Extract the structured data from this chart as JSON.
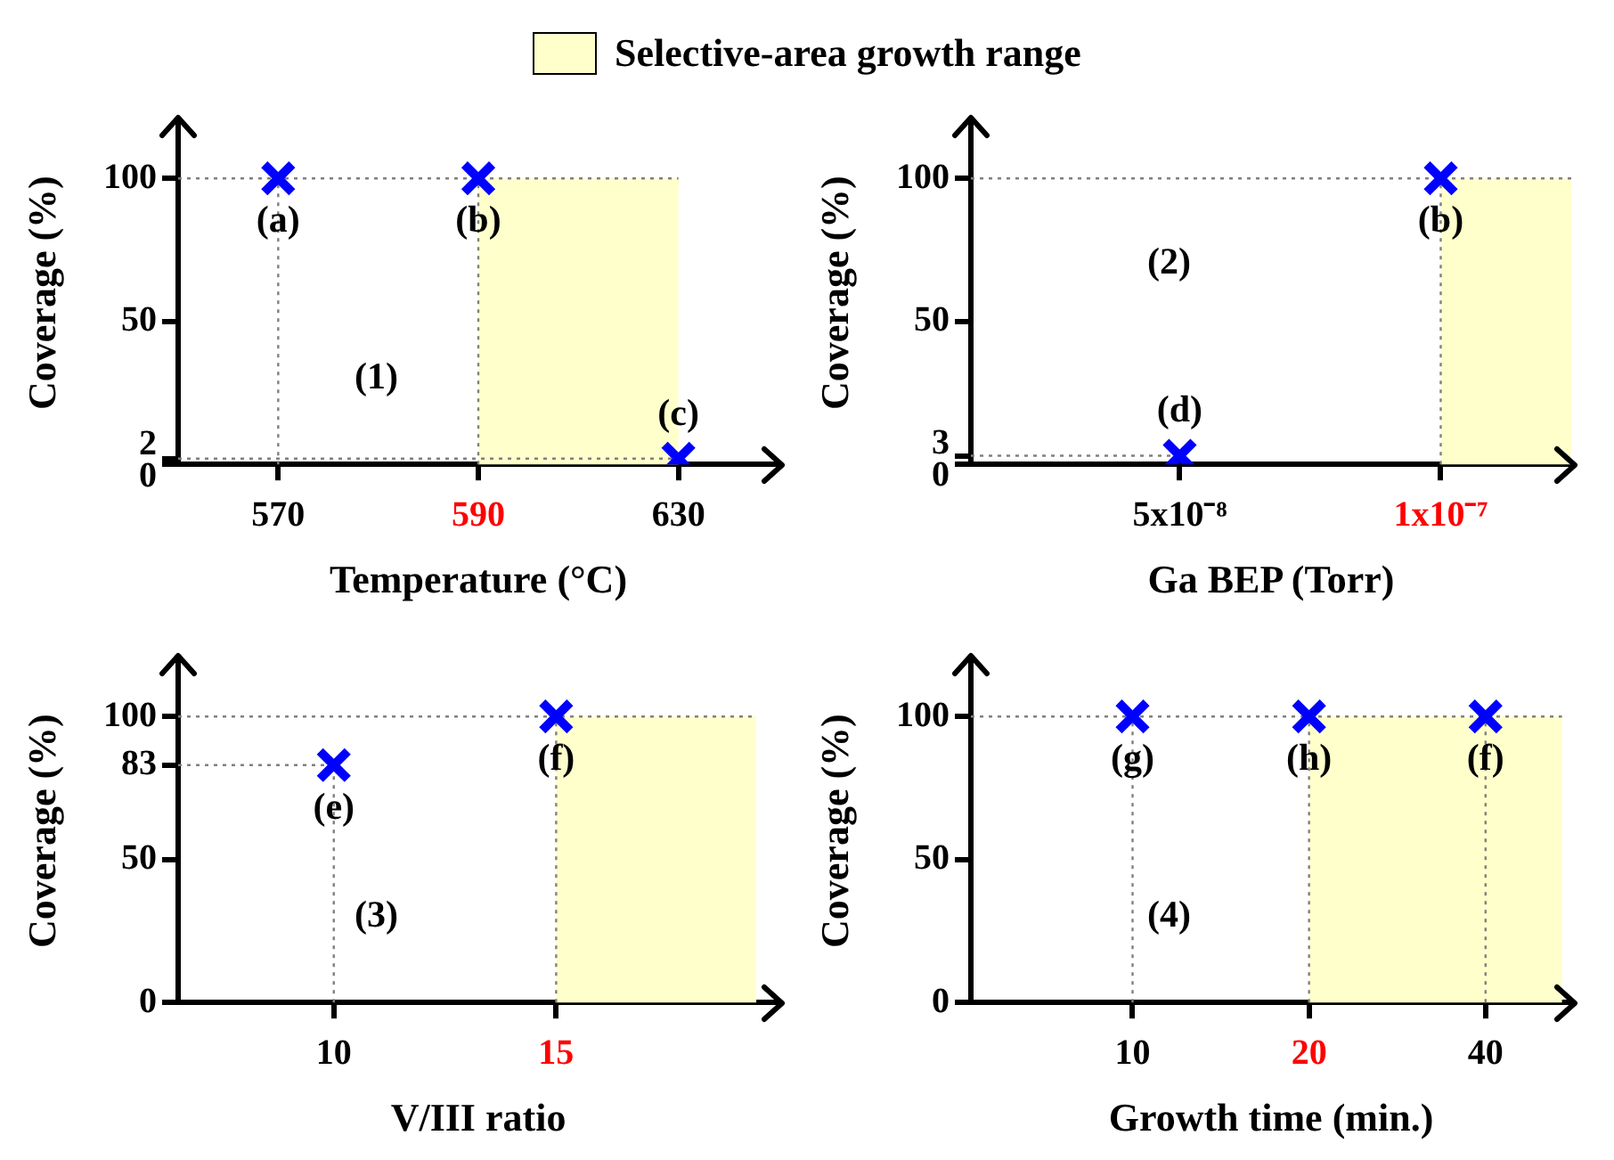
{
  "chart_data": [
    {
      "type": "scatter",
      "legend": "top",
      "xlabel": "Temperature (°C)",
      "ylabel": "Coverage (%)",
      "categories": [
        "570",
        "590",
        "630"
      ],
      "ylim": [
        0,
        120
      ],
      "yticks": [
        0,
        2,
        50,
        100
      ],
      "grid": false,
      "marker": "cross",
      "series": [
        {
          "color": "#0000ff",
          "x": [
            "570",
            "590",
            "630"
          ],
          "values": [
            100,
            100,
            2
          ]
        }
      ],
      "bands": [
        {
          "axis": "x",
          "from": "590",
          "to": "630",
          "label": "Selective-area growth range",
          "color": "#ffffcc"
        }
      ],
      "ref_lines": [
        {
          "axis": "y",
          "value": 100,
          "label": null,
          "color": "#808080",
          "line_style": "dotted"
        },
        {
          "axis": "y",
          "value": 2,
          "label": null,
          "color": "#808080",
          "line_style": "dotted"
        },
        {
          "axis": "x",
          "value": "570",
          "label": null,
          "color": "#808080",
          "line_style": "dotted"
        },
        {
          "axis": "x",
          "value": "590",
          "label": null,
          "color": "#808080",
          "line_style": "dotted"
        }
      ],
      "annotations": [
        {
          "text": "(a)",
          "x": "570",
          "y": 100
        },
        {
          "text": "(b)",
          "x": "590",
          "y": 100
        },
        {
          "text": "(c)",
          "x": "630",
          "y": 2
        },
        "(1)"
      ]
    },
    {
      "type": "scatter",
      "xlabel": "Ga BEP (Torr)",
      "ylabel": "Coverage (%)",
      "xlim": [
        1e-08,
        1.25e-07
      ],
      "xticks": [
        {
          "value": 5e-08,
          "label": "5x10⁻⁸"
        },
        {
          "value": 1e-07,
          "label": "1x10⁻⁷"
        }
      ],
      "ylim": [
        0,
        120
      ],
      "yticks": [
        0,
        3,
        50,
        100
      ],
      "grid": false,
      "marker": "cross",
      "series": [
        {
          "color": "#0000ff",
          "x": [
            5e-08,
            1e-07
          ],
          "values": [
            3,
            100
          ]
        }
      ],
      "bands": [
        {
          "axis": "x",
          "from": 1e-07,
          "to": 1.25e-07,
          "label": null,
          "color": "#ffffcc"
        }
      ],
      "ref_lines": [
        {
          "axis": "y",
          "value": 100,
          "label": null,
          "color": "#808080",
          "line_style": "dotted"
        },
        {
          "axis": "y",
          "value": 3,
          "label": null,
          "color": "#808080",
          "line_style": "dotted"
        },
        {
          "axis": "x",
          "value": 1e-07,
          "label": null,
          "color": "#808080",
          "line_style": "dotted"
        }
      ],
      "annotations": [
        {
          "text": "(d)",
          "x": 5e-08,
          "y": 3
        },
        {
          "text": "(b)",
          "x": 1e-07,
          "y": 100
        },
        "(2)"
      ]
    },
    {
      "type": "scatter",
      "xlabel": "V/III ratio",
      "ylabel": "Coverage (%)",
      "xlim": [
        6.5,
        20
      ],
      "xticks": [
        10,
        15
      ],
      "ylim": [
        0,
        120
      ],
      "yticks": [
        0,
        50,
        83,
        100
      ],
      "grid": false,
      "marker": "cross",
      "series": [
        {
          "color": "#0000ff",
          "x": [
            10,
            15
          ],
          "values": [
            83,
            100
          ]
        }
      ],
      "bands": [
        {
          "axis": "x",
          "from": 15,
          "to": 19.5,
          "label": null,
          "color": "#ffffcc"
        }
      ],
      "ref_lines": [
        {
          "axis": "y",
          "value": 100,
          "label": null,
          "color": "#808080",
          "line_style": "dotted"
        },
        {
          "axis": "y",
          "value": 83,
          "label": null,
          "color": "#808080",
          "line_style": "dotted"
        },
        {
          "axis": "x",
          "value": 10,
          "label": null,
          "color": "#808080",
          "line_style": "dotted"
        },
        {
          "axis": "x",
          "value": 15,
          "label": null,
          "color": "#808080",
          "line_style": "dotted"
        }
      ],
      "annotations": [
        {
          "text": "(e)",
          "x": 10,
          "y": 83
        },
        {
          "text": "(f)",
          "x": 15,
          "y": 100
        },
        "(3)"
      ]
    },
    {
      "type": "scatter",
      "xlabel": "Growth time (min.)",
      "ylabel": "Coverage (%)",
      "log": "x",
      "xlim": [
        5.3,
        56
      ],
      "xticks": [
        10,
        20,
        40
      ],
      "ylim": [
        0,
        120
      ],
      "yticks": [
        0,
        50,
        100
      ],
      "grid": false,
      "marker": "cross",
      "series": [
        {
          "color": "#0000ff",
          "x": [
            10,
            20,
            40
          ],
          "values": [
            100,
            100,
            100
          ]
        }
      ],
      "bands": [
        {
          "axis": "x",
          "from": 20,
          "to": 54,
          "label": null,
          "color": "#ffffcc"
        }
      ],
      "ref_lines": [
        {
          "axis": "y",
          "value": 100,
          "label": null,
          "color": "#808080",
          "line_style": "dotted"
        },
        {
          "axis": "x",
          "value": 10,
          "label": null,
          "color": "#808080",
          "line_style": "dotted"
        },
        {
          "axis": "x",
          "value": 20,
          "label": null,
          "color": "#808080",
          "line_style": "dotted"
        },
        {
          "axis": "x",
          "value": 40,
          "label": null,
          "color": "#808080",
          "line_style": "dotted"
        }
      ],
      "annotations": [
        {
          "text": "(g)",
          "x": 10,
          "y": 100
        },
        {
          "text": "(h)",
          "x": 20,
          "y": 100
        },
        {
          "text": "(f)",
          "x": 40,
          "y": 100
        },
        "(4)"
      ]
    }
  ]
}
